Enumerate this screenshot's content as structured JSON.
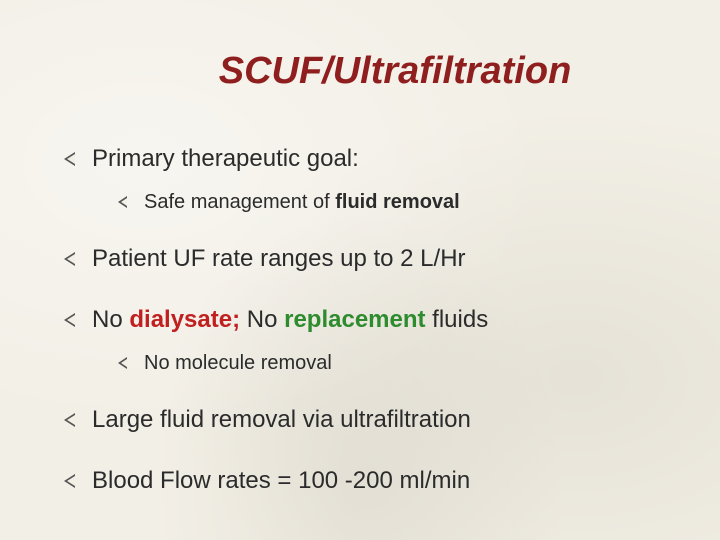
{
  "title": "SCUF/Ultrafiltration",
  "colors": {
    "title": "#8f1e1e",
    "body_text": "#2b2b2b",
    "keyword_red": "#c02020",
    "keyword_green": "#2e8b2e",
    "background": "#f2efe6",
    "bullet": "#555555"
  },
  "fonts": {
    "title_size_pt": 38,
    "bullet_size_pt": 24,
    "subbullet_size_pt": 20,
    "title_style": "bold italic",
    "family": "Arial"
  },
  "bullets": [
    {
      "text": "Primary therapeutic goal:",
      "sub": [
        {
          "pre": "Safe management of ",
          "bold": "fluid removal"
        }
      ]
    },
    {
      "text": "Patient UF rate ranges up to 2 L/Hr"
    },
    {
      "segments": [
        {
          "t": "No "
        },
        {
          "t": "dialysate; ",
          "cls": "kw-red"
        },
        {
          "t": "No "
        },
        {
          "t": "replacement",
          "cls": "kw-green"
        },
        {
          "t": " fluids"
        }
      ],
      "sub": [
        {
          "text": "No molecule removal"
        }
      ]
    },
    {
      "text": "Large fluid removal via ultrafiltration"
    },
    {
      "text": "Blood Flow rates = 100 -200 ml/min"
    }
  ]
}
